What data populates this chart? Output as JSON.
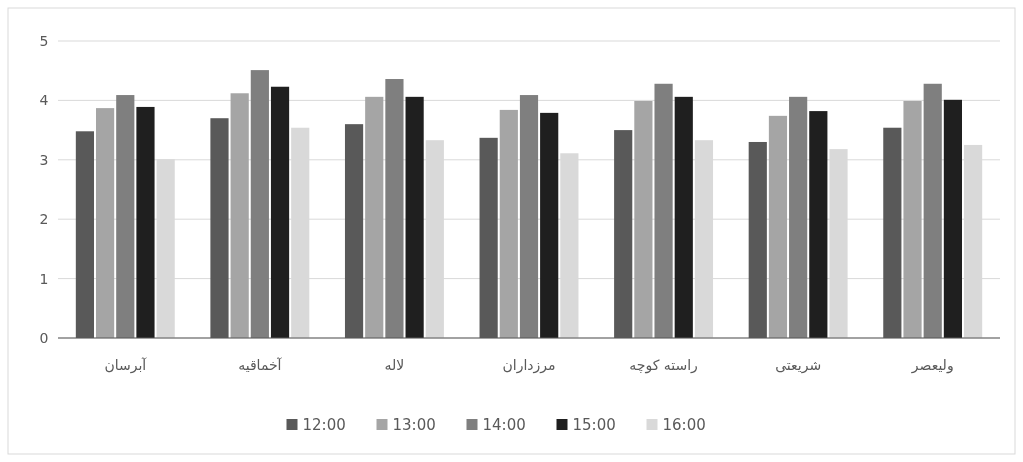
{
  "chart_data": {
    "type": "bar",
    "categories": [
      "آبرسان",
      "آخماقیه",
      "لاله",
      "مرزداران",
      "راسته کوچه",
      "شریعتی",
      "ولیعصر"
    ],
    "series": [
      {
        "name": "12:00",
        "color": "#595959",
        "values": [
          3.48,
          3.7,
          3.6,
          3.37,
          3.5,
          3.3,
          3.54
        ]
      },
      {
        "name": "13:00",
        "color": "#a5a5a5",
        "values": [
          3.87,
          4.12,
          4.06,
          3.84,
          3.99,
          3.74,
          3.99
        ]
      },
      {
        "name": "14:00",
        "color": "#7f7f7f",
        "values": [
          4.09,
          4.51,
          4.36,
          4.09,
          4.28,
          4.06,
          4.28
        ]
      },
      {
        "name": "15:00",
        "color": "#1f1f1f",
        "values": [
          3.89,
          4.23,
          4.06,
          3.79,
          4.06,
          3.82,
          4.01
        ]
      },
      {
        "name": "16:00",
        "color": "#d9d9d9",
        "values": [
          3.01,
          3.54,
          3.33,
          3.11,
          3.33,
          3.18,
          3.25
        ]
      }
    ],
    "ylim": [
      0,
      5
    ],
    "yticks": [
      0,
      1,
      2,
      3,
      4,
      5
    ],
    "grid": "y",
    "legend": "bottom"
  }
}
